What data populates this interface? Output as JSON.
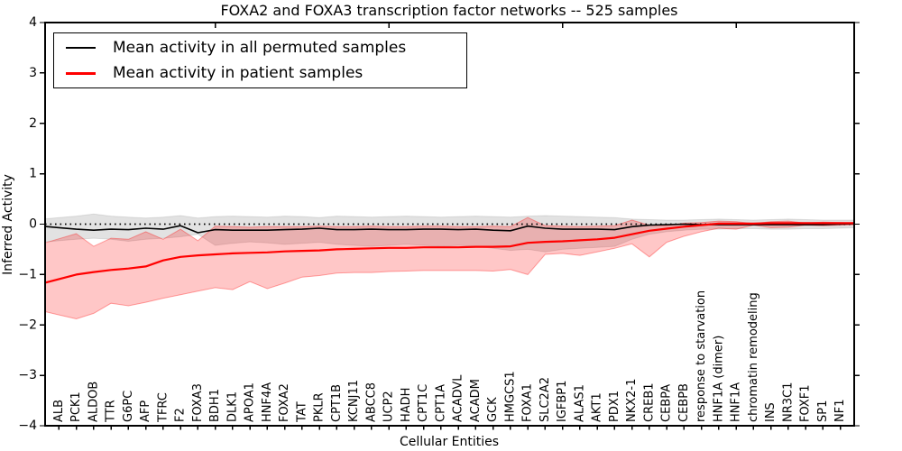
{
  "chart_data": {
    "type": "line",
    "title": "FOXA2 and FOXA3 transcription factor networks -- 525 samples",
    "xlabel": "Cellular Entities",
    "ylabel": "Inferred Activity",
    "ylim": [
      -4,
      4
    ],
    "yticks": [
      4,
      3,
      2,
      1,
      0,
      -1,
      -2,
      -3,
      -4
    ],
    "xlim": [
      0.2,
      46.8
    ],
    "top_axis_ticks_at": [
      10,
      20,
      30,
      40
    ],
    "grid": false,
    "background": "#ffffff",
    "zero_reference_line": {
      "value": 0,
      "style": "dotted",
      "color": "#000000"
    },
    "legend_position": "upper left",
    "categories": [
      "ALB",
      "PCK1",
      "ALDOB",
      "TTR",
      "G6PC",
      "AFP",
      "TFRC",
      "F2",
      "FOXA3",
      "BDH1",
      "DLK1",
      "APOA1",
      "HNF4A",
      "FOXA2",
      "TAT",
      "PKLR",
      "CPT1B",
      "KCNJ11",
      "ABCC8",
      "UCP2",
      "HADH",
      "CPT1C",
      "CPT1A",
      "ACADVL",
      "ACADM",
      "GCK",
      "HMGCS1",
      "FOXA1",
      "SLC2A2",
      "IGFBP1",
      "ALAS1",
      "AKT1",
      "PDX1",
      "NKX2-1",
      "CREB1",
      "CEBPA",
      "CEBPB",
      "response to starvation",
      "HNF1A (dimer)",
      "HNF1A",
      "chromatin remodeling",
      "INS",
      "NR3C1",
      "FOXF1",
      "SP1",
      "NF1"
    ],
    "series": [
      {
        "name": "Mean activity in all permuted samples",
        "color": "#000000",
        "linewidth": 1.6,
        "band_fill": "rgba(0,0,0,0.115)",
        "band_edge": "rgba(0,0,0,0.10)",
        "mean": [
          -0.07,
          -0.1,
          -0.12,
          -0.1,
          -0.11,
          -0.08,
          -0.1,
          -0.03,
          -0.17,
          -0.11,
          -0.12,
          -0.12,
          -0.12,
          -0.11,
          -0.1,
          -0.08,
          -0.11,
          -0.11,
          -0.1,
          -0.11,
          -0.11,
          -0.1,
          -0.1,
          -0.11,
          -0.1,
          -0.12,
          -0.13,
          -0.04,
          -0.08,
          -0.1,
          -0.1,
          -0.1,
          -0.11,
          -0.05,
          -0.02,
          -0.01,
          0.0,
          -0.01,
          -0.01,
          -0.01,
          -0.01,
          -0.01,
          -0.01,
          -0.01,
          -0.01,
          0.0
        ],
        "band_upper": [
          0.13,
          0.16,
          0.2,
          0.16,
          0.14,
          0.12,
          0.14,
          0.17,
          0.12,
          0.15,
          0.16,
          0.15,
          0.14,
          0.16,
          0.15,
          0.13,
          0.16,
          0.15,
          0.14,
          0.15,
          0.16,
          0.15,
          0.14,
          0.15,
          0.16,
          0.15,
          0.14,
          0.16,
          0.17,
          0.16,
          0.15,
          0.14,
          0.13,
          0.1,
          0.09,
          0.08,
          0.08,
          0.09,
          0.1,
          0.09,
          0.08,
          0.09,
          0.1,
          0.09,
          0.08,
          0.08
        ],
        "band_lower": [
          -0.33,
          -0.3,
          -0.28,
          -0.3,
          -0.34,
          -0.3,
          -0.28,
          -0.25,
          -0.2,
          -0.42,
          -0.38,
          -0.35,
          -0.37,
          -0.4,
          -0.38,
          -0.36,
          -0.4,
          -0.42,
          -0.44,
          -0.42,
          -0.4,
          -0.42,
          -0.44,
          -0.42,
          -0.44,
          -0.48,
          -0.52,
          -0.5,
          -0.55,
          -0.5,
          -0.48,
          -0.46,
          -0.44,
          -0.3,
          -0.2,
          -0.15,
          -0.12,
          -0.1,
          -0.1,
          -0.09,
          -0.09,
          -0.1,
          -0.1,
          -0.09,
          -0.09,
          -0.08
        ]
      },
      {
        "name": "Mean activity in patient samples",
        "color": "#ff0000",
        "linewidth": 2.2,
        "band_fill": "rgba(255,0,0,0.22)",
        "band_edge": "rgba(255,0,0,0.35)",
        "mean": [
          -1.09,
          -1.0,
          -0.95,
          -0.91,
          -0.88,
          -0.84,
          -0.72,
          -0.65,
          -0.62,
          -0.6,
          -0.58,
          -0.57,
          -0.56,
          -0.54,
          -0.53,
          -0.52,
          -0.5,
          -0.49,
          -0.48,
          -0.47,
          -0.47,
          -0.46,
          -0.46,
          -0.46,
          -0.45,
          -0.45,
          -0.44,
          -0.37,
          -0.35,
          -0.34,
          -0.32,
          -0.3,
          -0.27,
          -0.2,
          -0.13,
          -0.09,
          -0.05,
          -0.02,
          0.01,
          0.01,
          0.01,
          0.02,
          0.02,
          0.02,
          0.02,
          0.02
        ],
        "band_upper": [
          -0.29,
          -0.19,
          -0.44,
          -0.28,
          -0.3,
          -0.15,
          -0.3,
          -0.1,
          -0.33,
          -0.04,
          -0.05,
          -0.06,
          -0.05,
          -0.05,
          -0.05,
          -0.04,
          -0.05,
          -0.05,
          -0.04,
          -0.05,
          -0.05,
          -0.04,
          -0.04,
          -0.05,
          -0.05,
          -0.04,
          -0.05,
          0.13,
          -0.03,
          -0.04,
          -0.05,
          -0.04,
          -0.03,
          0.08,
          -0.02,
          -0.03,
          0.02,
          0.03,
          0.06,
          0.05,
          0.01,
          0.05,
          0.06,
          0.02,
          0.04,
          0.03
        ],
        "band_lower": [
          -1.8,
          -1.88,
          -1.77,
          -1.57,
          -1.62,
          -1.55,
          -1.47,
          -1.4,
          -1.33,
          -1.26,
          -1.3,
          -1.14,
          -1.28,
          -1.17,
          -1.05,
          -1.02,
          -0.97,
          -0.96,
          -0.96,
          -0.94,
          -0.93,
          -0.92,
          -0.92,
          -0.92,
          -0.92,
          -0.93,
          -0.9,
          -1.0,
          -0.6,
          -0.58,
          -0.62,
          -0.55,
          -0.48,
          -0.39,
          -0.65,
          -0.36,
          -0.24,
          -0.15,
          -0.08,
          -0.1,
          -0.02,
          -0.07,
          -0.06,
          -0.02,
          -0.03,
          -0.02
        ]
      }
    ]
  }
}
